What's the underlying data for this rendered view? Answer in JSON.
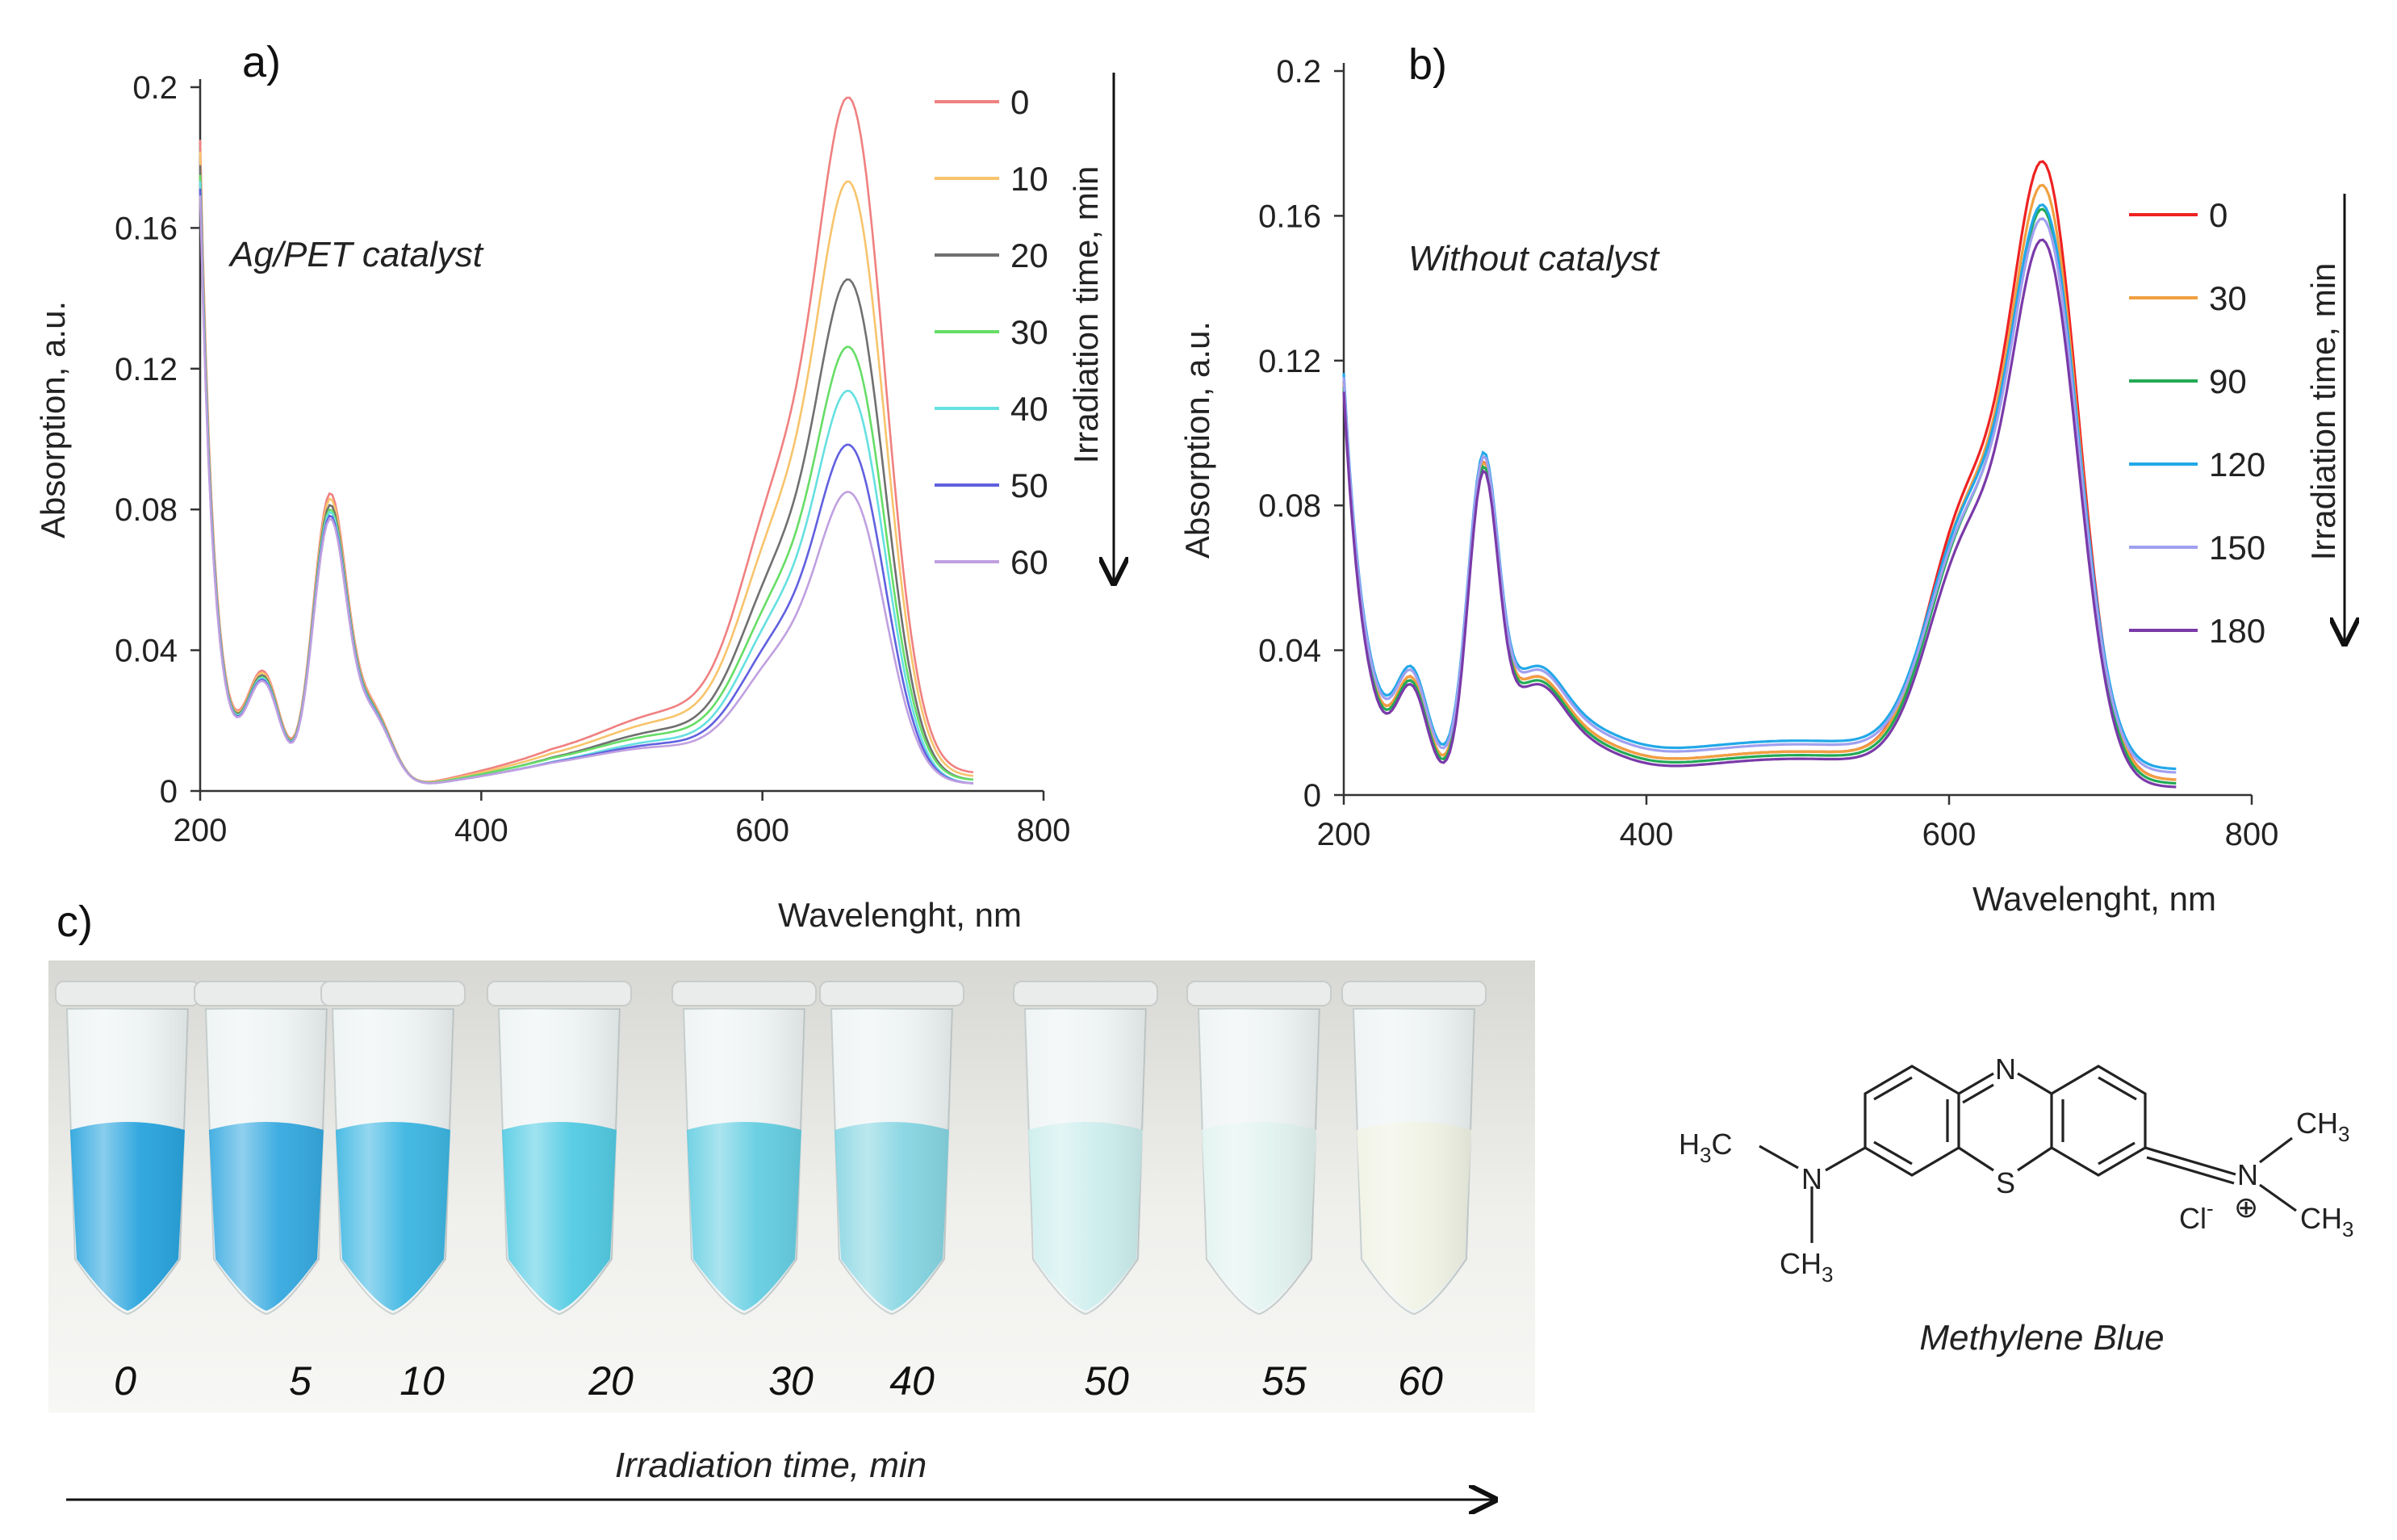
{
  "chart_data": [
    {
      "type": "line",
      "panel_label": "a)",
      "annotation": "Ag/PET catalyst",
      "xlabel": "Wavelenght, nm",
      "ylabel": "Absorption, a.u.",
      "xlim": [
        200,
        800
      ],
      "ylim": [
        0,
        0.2
      ],
      "xticks": [
        "200",
        "400",
        "600",
        "800"
      ],
      "yticks": [
        "0",
        "0.04",
        "0.08",
        "0.12",
        "0.16",
        "0.2"
      ],
      "legend_title": "Irradiation time, min",
      "legend_position": "right",
      "series": [
        {
          "name": "0",
          "color": "#f08080",
          "scale": 1.0,
          "tail": 0.005
        },
        {
          "name": "10",
          "color": "#f7c46c",
          "scale": 0.88,
          "tail": 0.004
        },
        {
          "name": "20",
          "color": "#707070",
          "scale": 0.74,
          "tail": 0.003
        },
        {
          "name": "30",
          "color": "#66dd66",
          "scale": 0.64,
          "tail": 0.003
        },
        {
          "name": "40",
          "color": "#66e0e0",
          "scale": 0.58,
          "tail": 0.002
        },
        {
          "name": "50",
          "color": "#6060e0",
          "scale": 0.5,
          "tail": 0.002
        },
        {
          "name": "60",
          "color": "#c0a0e0",
          "scale": 0.43,
          "tail": 0.002
        }
      ]
    },
    {
      "type": "line",
      "panel_label": "b)",
      "annotation": "Without catalyst",
      "xlabel": "Wavelenght, nm",
      "ylabel": "Absorption, a.u.",
      "xlim": [
        200,
        800
      ],
      "ylim": [
        0,
        0.2
      ],
      "xticks": [
        "200",
        "400",
        "600",
        "800"
      ],
      "yticks": [
        "0",
        "0.04",
        "0.08",
        "0.12",
        "0.16",
        "0.2"
      ],
      "legend_title": "Irradiation time, min",
      "legend_position": "right",
      "series": [
        {
          "name": "0",
          "color": "#ee2222",
          "peak": 0.181,
          "base": 0.004
        },
        {
          "name": "30",
          "color": "#f0a040",
          "peak": 0.174,
          "base": 0.004
        },
        {
          "name": "90",
          "color": "#22aa55",
          "peak": 0.168,
          "base": 0.003
        },
        {
          "name": "120",
          "color": "#22a8e8",
          "peak": 0.165,
          "base": 0.007
        },
        {
          "name": "150",
          "color": "#a0a0f0",
          "peak": 0.162,
          "base": 0.006
        },
        {
          "name": "180",
          "color": "#7a3aa8",
          "peak": 0.16,
          "base": 0.002
        }
      ]
    }
  ],
  "photo": {
    "panel_label": "c)",
    "tube_labels": [
      "0",
      "5",
      "10",
      "20",
      "30",
      "40",
      "50",
      "55",
      "60"
    ],
    "tube_colors": [
      "#1c9fdc",
      "#2aa4de",
      "#31b2e0",
      "#49c8e2",
      "#5dcbe0",
      "#7fd3e0",
      "#c9ecec",
      "#dff2ee",
      "#eef1e2"
    ],
    "xlabel": "Irradiation time, min"
  },
  "molecule": {
    "name": "Methylene Blue",
    "atoms": {
      "n_top": "N",
      "s": "S",
      "n_left": "N",
      "n_right": "N",
      "cl": "Cl",
      "cl_charge": "-",
      "plus": "⊕"
    },
    "groups": {
      "ch3": "CH",
      "sub3": "3",
      "h3c_h": "H",
      "h3c_c": "C"
    }
  }
}
